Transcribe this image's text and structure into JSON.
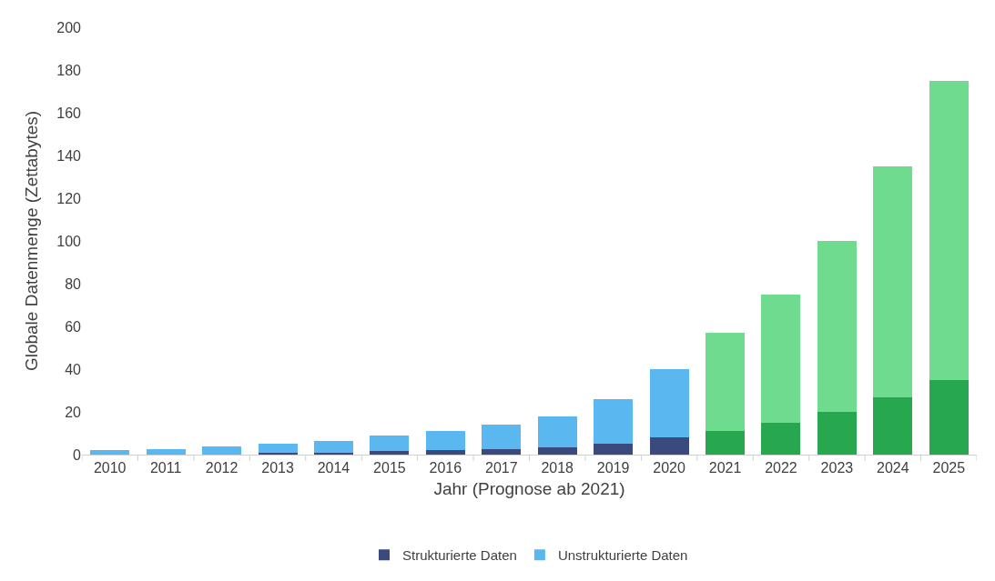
{
  "chart_data": {
    "type": "bar",
    "stacked": true,
    "xlabel": "Jahr (Prognose ab 2021)",
    "ylabel": "Globale Datenmenge (Zettabytes)",
    "categories": [
      "2010",
      "2011",
      "2012",
      "2013",
      "2014",
      "2015",
      "2016",
      "2017",
      "2018",
      "2019",
      "2020",
      "2021",
      "2022",
      "2023",
      "2024",
      "2025"
    ],
    "series": [
      {
        "name": "Strukturierte Daten",
        "color": "#3b4a7e",
        "values": [
          0,
          0,
          0,
          1,
          1,
          1.5,
          2,
          2.5,
          3.5,
          5,
          8,
          null,
          null,
          null,
          null,
          null
        ]
      },
      {
        "name": "Unstrukturierte Daten",
        "color": "#5bb7f0",
        "values": [
          2,
          2.5,
          4,
          4,
          5.5,
          7.5,
          9,
          11.5,
          14.5,
          21,
          32,
          null,
          null,
          null,
          null,
          null
        ]
      },
      {
        "color": "#27a84f",
        "values": [
          null,
          null,
          null,
          null,
          null,
          null,
          null,
          null,
          null,
          null,
          null,
          11,
          15,
          20,
          27,
          35
        ]
      },
      {
        "color": "#6fdb8f",
        "values": [
          null,
          null,
          null,
          null,
          null,
          null,
          null,
          null,
          null,
          null,
          null,
          46,
          60,
          80,
          108,
          140
        ]
      }
    ],
    "ylim": [
      0,
      200
    ],
    "yticks": [
      0,
      20,
      40,
      60,
      80,
      100,
      120,
      140,
      160,
      180,
      200
    ],
    "legend": "bottom"
  }
}
